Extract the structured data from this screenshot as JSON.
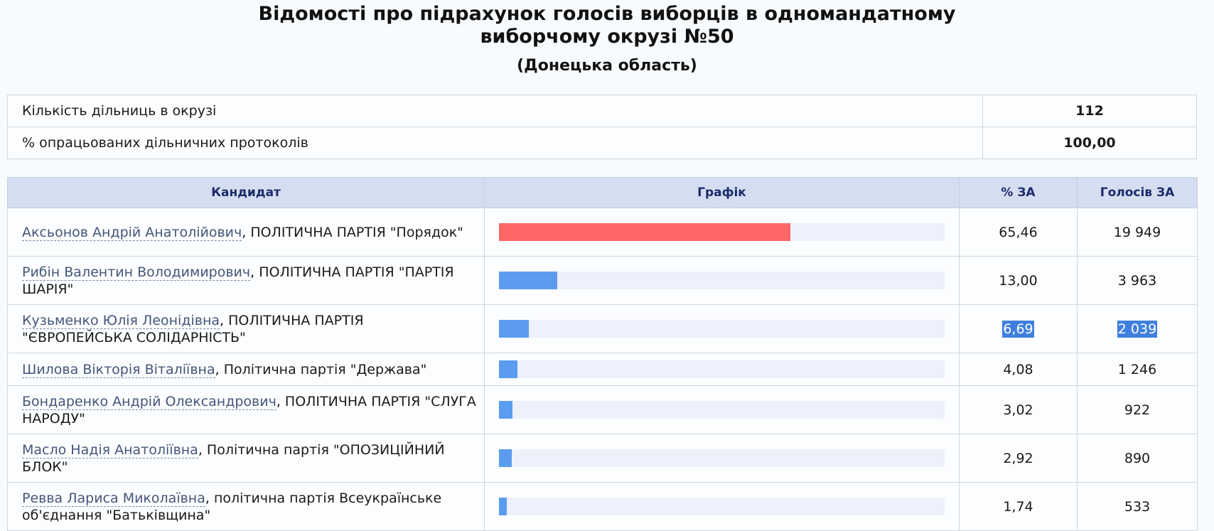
{
  "header": {
    "title_line1": "Відомості про підрахунок голосів виборців в одномандатному",
    "title_line2": "виборчому окрузі №50",
    "subtitle": "(Донецька область)"
  },
  "summary": [
    {
      "label": "Кількість дільниць в окрузі",
      "value": "112"
    },
    {
      "label": "% опрацьованих дільничних протоколів",
      "value": "100,00"
    }
  ],
  "table": {
    "columns": [
      "Кандидат",
      "Графік",
      "% ЗА",
      "Голосів ЗА"
    ],
    "rows": [
      {
        "name": "Аксьонов Андрій Анатолійович",
        "party": ", ПОЛІТИЧНА ПАРТІЯ \"Порядок\"",
        "percent": "65,46",
        "votes": "19 949",
        "bar_color": "#ff6666",
        "bar_fraction": 0.6546,
        "selected": false
      },
      {
        "name": "Рибін Валентин Володимирович",
        "party": ", ПОЛІТИЧНА ПАРТІЯ \"ПАРТІЯ ШАРІЯ\"",
        "percent": "13,00",
        "votes": "3 963",
        "bar_color": "#5b9cf0",
        "bar_fraction": 0.13,
        "selected": false
      },
      {
        "name": "Кузьменко Юлія Леонідівна",
        "party": ", ПОЛІТИЧНА ПАРТІЯ \"ЄВРОПЕЙСЬКА СОЛІДАРНІСТЬ\"",
        "percent": "6,69",
        "votes": "2 039",
        "bar_color": "#5b9cf0",
        "bar_fraction": 0.0669,
        "selected": true
      },
      {
        "name": "Шилова Вікторія Віталіївна",
        "party": ", Політична партія \"Держава\"",
        "percent": "4,08",
        "votes": "1 246",
        "bar_color": "#5b9cf0",
        "bar_fraction": 0.0408,
        "selected": false
      },
      {
        "name": "Бондаренко Андрій Олександрович",
        "party": ", ПОЛІТИЧНА ПАРТІЯ \"СЛУГА НАРОДУ\"",
        "percent": "3,02",
        "votes": "922",
        "bar_color": "#5b9cf0",
        "bar_fraction": 0.0302,
        "selected": false
      },
      {
        "name": "Масло Надія Анатоліївна",
        "party": ", Політична партія \"ОПОЗИЦІЙНИЙ БЛОК\"",
        "percent": "2,92",
        "votes": "890",
        "bar_color": "#5b9cf0",
        "bar_fraction": 0.0292,
        "selected": false
      },
      {
        "name": "Ревва Лариса Миколаївна",
        "party": ", політична партія Всеукраїнське об'єднання \"Батьківщина\"",
        "percent": "1,74",
        "votes": "533",
        "bar_color": "#5b9cf0",
        "bar_fraction": 0.0174,
        "selected": false
      }
    ]
  }
}
